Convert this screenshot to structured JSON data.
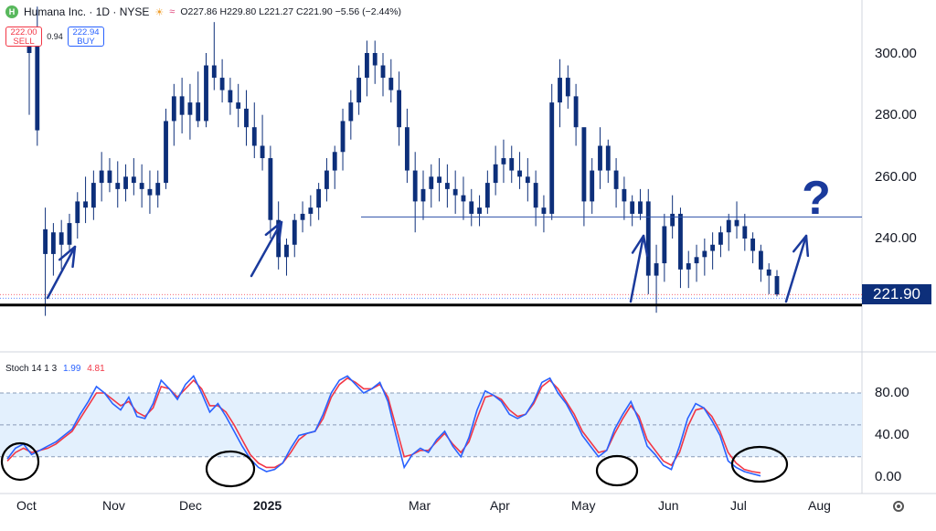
{
  "header": {
    "logo_letter": "H",
    "symbol": "Humana Inc. · 1D · NYSE",
    "ohlc": "O227.86  H229.80  L221.27  C221.90  −5.56 (−2.44%)"
  },
  "trade": {
    "sell_price": "222.00",
    "sell_label": "SELL",
    "spread": "0.94",
    "buy_price": "222.94",
    "buy_label": "BUY"
  },
  "stoch": {
    "label": "Stoch 14 1 3",
    "k": "1.99",
    "d": "4.81"
  },
  "price_tag": "221.90",
  "colors": {
    "candle": "#0d2f7a",
    "k_line": "#2962ff",
    "d_line": "#f23645",
    "annotation": "#1a3a9c",
    "band": "#e3f0fd"
  },
  "chart_data": [
    {
      "type": "candlestick",
      "title": "Humana Inc. · 1D · NYSE",
      "y_axis_ticks": [
        "300.00",
        "280.00",
        "260.00",
        "240.00"
      ],
      "ylim": [
        210,
        312
      ],
      "x_axis_ticks": [
        "Oct",
        "Nov",
        "Dec",
        "2025",
        "Mar",
        "Apr",
        "May",
        "Jun",
        "Jul",
        "Aug"
      ],
      "last_close": 221.9,
      "series": [
        {
          "values": [
            [
              300,
              308,
              280,
              307
            ],
            [
              307,
              315,
              270,
              275
            ],
            [
              243,
              250,
              215,
              235
            ],
            [
              235,
              245,
              228,
              242
            ],
            [
              242,
              246,
              230,
              238
            ],
            [
              238,
              248,
              236,
              245
            ],
            [
              245,
              255,
              240,
              252
            ],
            [
              252,
              260,
              245,
              250
            ],
            [
              250,
              262,
              246,
              258
            ],
            [
              258,
              268,
              252,
              262
            ],
            [
              262,
              266,
              255,
              258
            ],
            [
              258,
              265,
              250,
              256
            ],
            [
              256,
              264,
              252,
              260
            ],
            [
              260,
              266,
              254,
              258
            ],
            [
              258,
              264,
              250,
              256
            ],
            [
              256,
              262,
              248,
              254
            ],
            [
              254,
              262,
              250,
              258
            ],
            [
              258,
              282,
              256,
              278
            ],
            [
              278,
              290,
              270,
              286
            ],
            [
              286,
              292,
              274,
              280
            ],
            [
              280,
              290,
              272,
              284
            ],
            [
              284,
              294,
              276,
              278
            ],
            [
              278,
              300,
              276,
              296
            ],
            [
              296,
              310,
              288,
              292
            ],
            [
              292,
              298,
              284,
              288
            ],
            [
              288,
              292,
              280,
              284
            ],
            [
              284,
              290,
              276,
              282
            ],
            [
              282,
              288,
              270,
              276
            ],
            [
              276,
              284,
              266,
              270
            ],
            [
              270,
              280,
              262,
              266
            ],
            [
              266,
              270,
              240,
              246
            ],
            [
              246,
              252,
              230,
              234
            ],
            [
              234,
              240,
              228,
              238
            ],
            [
              238,
              248,
              234,
              246
            ],
            [
              246,
              252,
              242,
              248
            ],
            [
              248,
              254,
              244,
              250
            ],
            [
              250,
              258,
              246,
              256
            ],
            [
              256,
              266,
              252,
              262
            ],
            [
              262,
              270,
              256,
              268
            ],
            [
              268,
              282,
              262,
              278
            ],
            [
              278,
              288,
              272,
              284
            ],
            [
              284,
              296,
              280,
              292
            ],
            [
              292,
              304,
              286,
              300
            ],
            [
              300,
              304,
              290,
              296
            ],
            [
              296,
              300,
              286,
              292
            ],
            [
              292,
              298,
              284,
              288
            ],
            [
              288,
              294,
              270,
              276
            ],
            [
              276,
              282,
              258,
              262
            ],
            [
              262,
              268,
              242,
              252
            ],
            [
              252,
              262,
              246,
              256
            ],
            [
              256,
              264,
              250,
              260
            ],
            [
              260,
              266,
              252,
              258
            ],
            [
              258,
              264,
              250,
              256
            ],
            [
              256,
              262,
              248,
              254
            ],
            [
              254,
              260,
              246,
              252
            ],
            [
              252,
              256,
              244,
              248
            ],
            [
              248,
              254,
              244,
              250
            ],
            [
              250,
              262,
              248,
              258
            ],
            [
              258,
              270,
              254,
              264
            ],
            [
              264,
              272,
              258,
              266
            ],
            [
              266,
              270,
              258,
              262
            ],
            [
              262,
              268,
              256,
              260
            ],
            [
              260,
              266,
              252,
              258
            ],
            [
              258,
              262,
              244,
              250
            ],
            [
              250,
              254,
              242,
              248
            ],
            [
              248,
              290,
              246,
              284
            ],
            [
              284,
              298,
              276,
              292
            ],
            [
              292,
              296,
              282,
              286
            ],
            [
              286,
              290,
              270,
              276
            ],
            [
              276,
              272,
              244,
              252
            ],
            [
              252,
              266,
              248,
              262
            ],
            [
              262,
              276,
              256,
              270
            ],
            [
              270,
              272,
              258,
              262
            ],
            [
              262,
              266,
              250,
              256
            ],
            [
              256,
              260,
              246,
              252
            ],
            [
              252,
              254,
              244,
              248
            ],
            [
              248,
              256,
              246,
              252
            ],
            [
              252,
              256,
              222,
              228
            ],
            [
              228,
              238,
              216,
              232
            ],
            [
              232,
              248,
              226,
              244
            ],
            [
              244,
              254,
              240,
              248
            ],
            [
              248,
              250,
              224,
              230
            ],
            [
              230,
              236,
              224,
              232
            ],
            [
              232,
              238,
              226,
              234
            ],
            [
              234,
              240,
              228,
              236
            ],
            [
              236,
              242,
              230,
              238
            ],
            [
              238,
              244,
              234,
              242
            ],
            [
              242,
              248,
              236,
              246
            ],
            [
              246,
              252,
              240,
              244
            ],
            [
              244,
              248,
              236,
              240
            ],
            [
              240,
              242,
              232,
              236
            ],
            [
              236,
              238,
              226,
              230
            ],
            [
              230,
              232,
              222,
              228
            ],
            [
              227.86,
              229.8,
              221.27,
              221.9
            ]
          ]
        }
      ],
      "annotations": {
        "support_price": 218.5,
        "resistance_price": 247,
        "question_mark": "?"
      }
    },
    {
      "type": "line",
      "title": "Stoch 14 1 3",
      "y_axis_ticks": [
        "80.00",
        "40.00",
        "0.00"
      ],
      "ylim": [
        -8,
        100
      ],
      "bands": [
        20,
        50,
        80
      ],
      "series": [
        {
          "name": "%K",
          "values": [
            18,
            28,
            32,
            22,
            26,
            30,
            34,
            40,
            46,
            60,
            72,
            86,
            80,
            70,
            64,
            76,
            58,
            56,
            70,
            92,
            84,
            74,
            88,
            96,
            80,
            62,
            70,
            58,
            44,
            30,
            18,
            10,
            6,
            8,
            14,
            28,
            40,
            42,
            44,
            60,
            80,
            92,
            96,
            88,
            80,
            84,
            90,
            72,
            40,
            10,
            22,
            28,
            24,
            36,
            44,
            30,
            20,
            38,
            64,
            82,
            78,
            72,
            60,
            56,
            60,
            72,
            90,
            94,
            80,
            70,
            56,
            40,
            30,
            20,
            26,
            46,
            60,
            72,
            54,
            30,
            22,
            12,
            8,
            30,
            56,
            70,
            66,
            54,
            40,
            16,
            10,
            6,
            4,
            2
          ]
        },
        {
          "name": "%D",
          "values": [
            16,
            24,
            28,
            24,
            26,
            28,
            32,
            38,
            44,
            56,
            68,
            80,
            80,
            74,
            68,
            72,
            62,
            58,
            66,
            86,
            84,
            76,
            84,
            92,
            84,
            68,
            68,
            62,
            50,
            36,
            22,
            14,
            10,
            10,
            14,
            24,
            36,
            42,
            44,
            56,
            76,
            88,
            94,
            90,
            84,
            84,
            88,
            76,
            48,
            20,
            22,
            26,
            26,
            34,
            42,
            32,
            24,
            34,
            56,
            76,
            78,
            74,
            64,
            58,
            60,
            70,
            86,
            92,
            84,
            72,
            60,
            44,
            34,
            24,
            26,
            42,
            56,
            68,
            58,
            36,
            26,
            16,
            12,
            24,
            48,
            64,
            66,
            58,
            44,
            24,
            14,
            8,
            6,
            4.81
          ]
        }
      ]
    }
  ]
}
